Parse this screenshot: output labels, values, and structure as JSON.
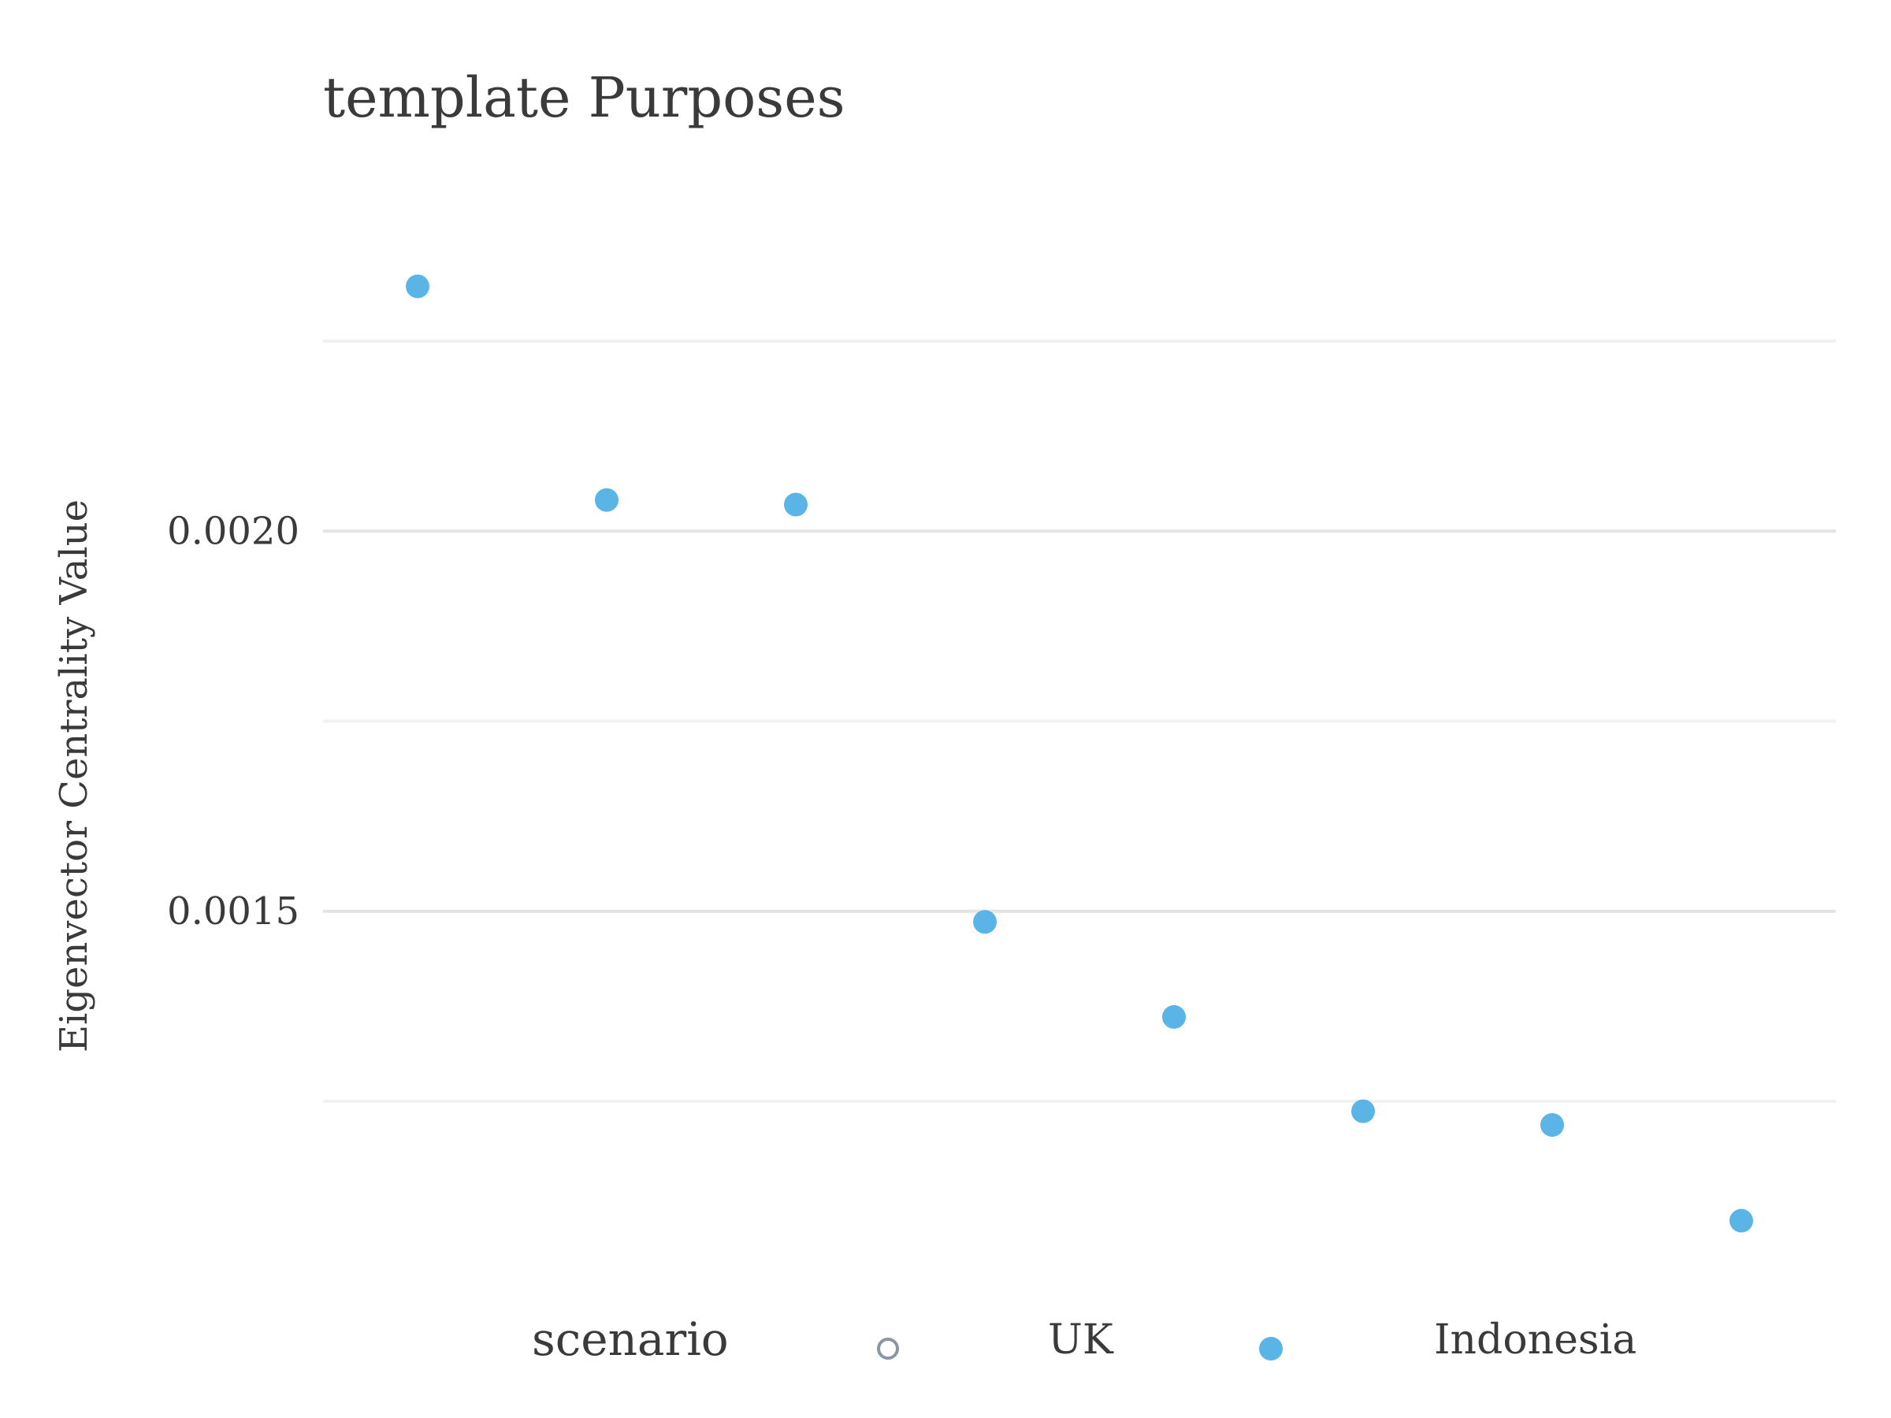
{
  "chart_data": {
    "type": "scatter",
    "title": "template Purposes",
    "xlabel": "",
    "ylabel": "Eigenvector Centrality Value",
    "yticks": [
      {
        "value": 0.0015,
        "label": "0.0015"
      },
      {
        "value": 0.002,
        "label": "0.0020"
      }
    ],
    "minor_gridlines": [
      0.00125,
      0.00175,
      0.00225
    ],
    "ylim": [
      0.00102,
      0.00245
    ],
    "grid": true,
    "legend": {
      "title": "scenario",
      "position": "bottom",
      "entries": [
        {
          "name": "UK",
          "marker": "hollow",
          "color": "#8a96a3"
        },
        {
          "name": "Indonesia",
          "marker": "filled",
          "color": "#5ab4e6"
        }
      ]
    },
    "series": [
      {
        "name": "Indonesia",
        "color": "#5ab4e6",
        "points": [
          {
            "x": 1,
            "y": 0.002322
          },
          {
            "x": 2,
            "y": 0.002041
          },
          {
            "x": 3,
            "y": 0.002035
          },
          {
            "x": 4,
            "y": 0.001486
          },
          {
            "x": 5,
            "y": 0.001361
          },
          {
            "x": 6,
            "y": 0.001237
          },
          {
            "x": 7,
            "y": 0.001219
          },
          {
            "x": 8,
            "y": 0.001093
          }
        ]
      }
    ]
  }
}
